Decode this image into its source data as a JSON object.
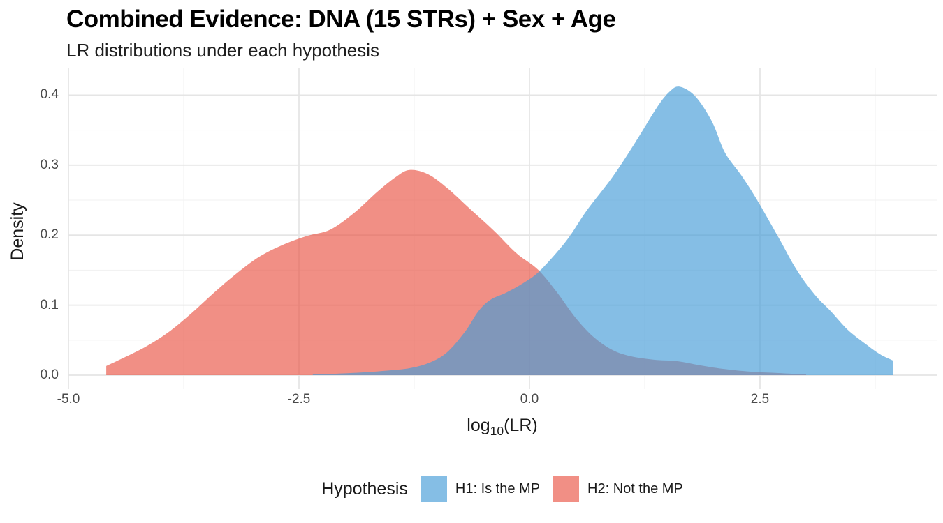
{
  "header": {
    "title": "Combined Evidence: DNA (15 STRs) + Sex + Age",
    "subtitle": "LR distributions under each hypothesis"
  },
  "axes": {
    "x": {
      "title_prefix": "log",
      "title_sub": "10",
      "title_suffix": "(LR)",
      "ticks": [
        {
          "value": -5.0,
          "label": "-5.0"
        },
        {
          "value": -2.5,
          "label": "-2.5"
        },
        {
          "value": 0.0,
          "label": "0.0"
        },
        {
          "value": 2.5,
          "label": "2.5"
        }
      ],
      "minor_gridlines": [
        -3.75,
        -1.25,
        1.25,
        3.75
      ]
    },
    "y": {
      "title": "Density",
      "ticks": [
        {
          "value": 0.0,
          "label": "0.0"
        },
        {
          "value": 0.1,
          "label": "0.1"
        },
        {
          "value": 0.2,
          "label": "0.2"
        },
        {
          "value": 0.3,
          "label": "0.3"
        },
        {
          "value": 0.4,
          "label": "0.4"
        }
      ],
      "minor_gridlines": [
        0.05,
        0.15,
        0.25,
        0.35
      ]
    }
  },
  "legend": {
    "title": "Hypothesis",
    "items": [
      {
        "label": "H1: Is the MP",
        "color": "rgba(67,155,215,0.65)"
      },
      {
        "label": "H2: Not the MP",
        "color": "rgba(233,83,67,0.65)"
      }
    ]
  },
  "colors": {
    "grid_major": "#e5e5e5",
    "grid_minor": "#f2f2f2",
    "background": "#ffffff",
    "h1_blue_rendered": "#85bee5",
    "h2_red_rendered": "#f18f85",
    "overlap_rendered": "#8095bc"
  },
  "chart_data": {
    "type": "area",
    "subtype": "density",
    "title": "Combined Evidence: DNA (15 STRs) + Sex + Age",
    "subtitle": "LR distributions under each hypothesis",
    "xlabel": "log10(LR)",
    "ylabel": "Density",
    "xlim": [
      -5.0,
      4.4
    ],
    "ylim": [
      0,
      0.435
    ],
    "grid": true,
    "legend_position": "bottom",
    "series": [
      {
        "name": "H1: Is the MP",
        "hypothesis": "H1",
        "color": "rgba(67,155,215,0.65)",
        "draw_order": 2,
        "points": [
          [
            -2.35,
            0.001
          ],
          [
            -2.1,
            0.002
          ],
          [
            -1.8,
            0.004
          ],
          [
            -1.5,
            0.007
          ],
          [
            -1.3,
            0.01
          ],
          [
            -1.1,
            0.017
          ],
          [
            -0.9,
            0.032
          ],
          [
            -0.7,
            0.062
          ],
          [
            -0.55,
            0.092
          ],
          [
            -0.42,
            0.108
          ],
          [
            -0.25,
            0.118
          ],
          [
            -0.05,
            0.133
          ],
          [
            0.12,
            0.15
          ],
          [
            0.4,
            0.192
          ],
          [
            0.62,
            0.235
          ],
          [
            0.9,
            0.283
          ],
          [
            1.15,
            0.333
          ],
          [
            1.38,
            0.382
          ],
          [
            1.52,
            0.405
          ],
          [
            1.63,
            0.412
          ],
          [
            1.8,
            0.398
          ],
          [
            1.98,
            0.362
          ],
          [
            2.12,
            0.318
          ],
          [
            2.3,
            0.285
          ],
          [
            2.47,
            0.25
          ],
          [
            2.7,
            0.197
          ],
          [
            2.9,
            0.15
          ],
          [
            3.1,
            0.114
          ],
          [
            3.27,
            0.091
          ],
          [
            3.45,
            0.065
          ],
          [
            3.64,
            0.045
          ],
          [
            3.8,
            0.03
          ],
          [
            3.94,
            0.021
          ]
        ]
      },
      {
        "name": "H2: Not the MP",
        "hypothesis": "H2",
        "color": "rgba(233,83,67,0.65)",
        "draw_order": 1,
        "points": [
          [
            -4.59,
            0.013
          ],
          [
            -4.43,
            0.023
          ],
          [
            -4.17,
            0.04
          ],
          [
            -3.92,
            0.061
          ],
          [
            -3.67,
            0.088
          ],
          [
            -3.42,
            0.118
          ],
          [
            -3.17,
            0.146
          ],
          [
            -2.92,
            0.17
          ],
          [
            -2.66,
            0.187
          ],
          [
            -2.41,
            0.199
          ],
          [
            -2.16,
            0.208
          ],
          [
            -1.9,
            0.232
          ],
          [
            -1.65,
            0.262
          ],
          [
            -1.45,
            0.283
          ],
          [
            -1.3,
            0.293
          ],
          [
            -1.1,
            0.287
          ],
          [
            -0.89,
            0.267
          ],
          [
            -0.64,
            0.237
          ],
          [
            -0.39,
            0.207
          ],
          [
            -0.14,
            0.174
          ],
          [
            0.09,
            0.151
          ],
          [
            0.3,
            0.118
          ],
          [
            0.5,
            0.082
          ],
          [
            0.7,
            0.054
          ],
          [
            0.9,
            0.036
          ],
          [
            1.1,
            0.027
          ],
          [
            1.35,
            0.022
          ],
          [
            1.6,
            0.02
          ],
          [
            1.85,
            0.014
          ],
          [
            2.1,
            0.009
          ],
          [
            2.4,
            0.005
          ],
          [
            2.7,
            0.003
          ],
          [
            3.0,
            0.001
          ]
        ]
      }
    ]
  }
}
